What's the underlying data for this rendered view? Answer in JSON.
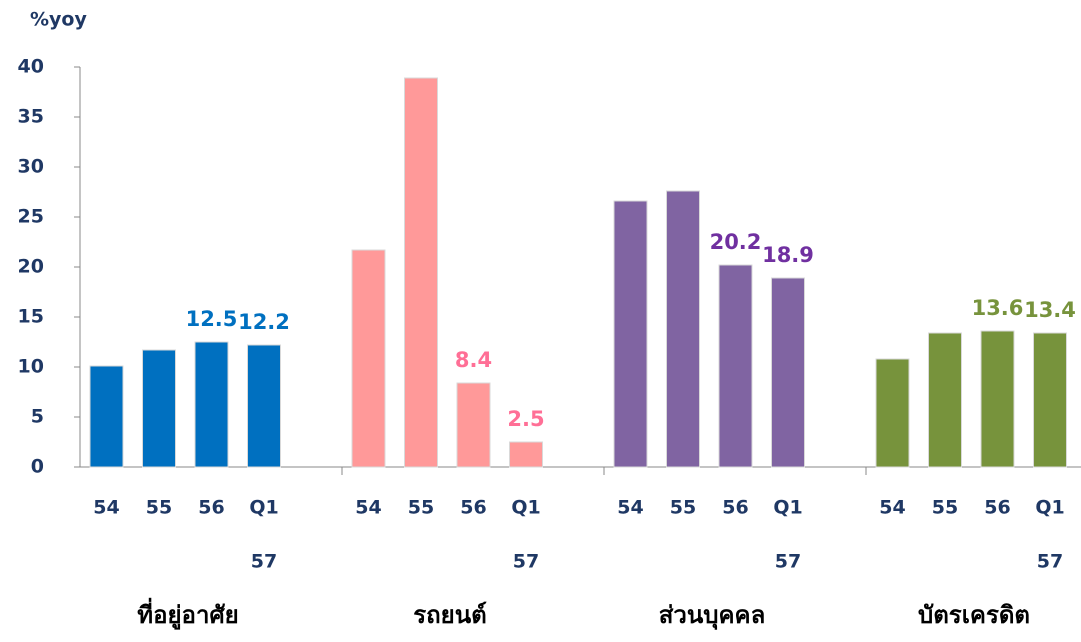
{
  "chart_data": {
    "type": "bar",
    "y_label": "%yoy",
    "ylim": [
      0,
      40
    ],
    "yticks": [
      0,
      5,
      10,
      15,
      20,
      25,
      30,
      35,
      40
    ],
    "categories": [
      "54",
      "55",
      "56",
      "Q1"
    ],
    "sub_labels": [
      null,
      null,
      null,
      "57"
    ],
    "series": [
      {
        "name": "ที่อยู่อาศัย",
        "color": "#0070c0",
        "label_color": "#0070c0",
        "values": [
          10.1,
          11.7,
          12.5,
          12.2
        ],
        "value_labels": [
          null,
          null,
          "12.5",
          "12.2"
        ]
      },
      {
        "name": "รถยนต์",
        "color": "#ff9999",
        "label_color": "#ff6f96",
        "values": [
          21.7,
          38.9,
          8.4,
          2.5
        ],
        "value_labels": [
          null,
          null,
          "8.4",
          "2.5"
        ]
      },
      {
        "name": "ส่วนบุคคล",
        "color": "#8064a2",
        "label_color": "#7030a0",
        "values": [
          26.6,
          27.6,
          20.2,
          18.9
        ],
        "value_labels": [
          null,
          null,
          "20.2",
          "18.9"
        ]
      },
      {
        "name": "บัตรเครดิต",
        "color": "#77933c",
        "label_color": "#77933c",
        "values": [
          10.8,
          13.4,
          13.6,
          13.4
        ],
        "value_labels": [
          null,
          null,
          "13.6",
          "13.4"
        ]
      }
    ]
  }
}
